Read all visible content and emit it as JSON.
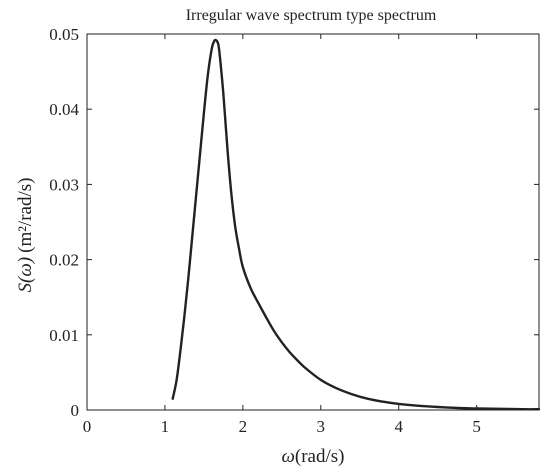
{
  "chart_data": {
    "type": "line",
    "title": "Irregular wave spectrum type spectrum",
    "xlabel_symbol": "ω",
    "xlabel_unit": "(rad/s)",
    "ylabel_symbol": "S(ω)",
    "ylabel_unit": "(m²/rad/s)",
    "xlim": [
      0,
      5.8
    ],
    "ylim": [
      0,
      0.05
    ],
    "xticks": [
      0,
      1,
      2,
      3,
      4,
      5
    ],
    "yticks": [
      0,
      0.01,
      0.02,
      0.03,
      0.04,
      0.05
    ],
    "xtick_labels": [
      "0",
      "1",
      "2",
      "3",
      "4",
      "5"
    ],
    "ytick_labels": [
      "0",
      "0.01",
      "0.02",
      "0.03",
      "0.04",
      "0.05"
    ],
    "grid": false,
    "series": [
      {
        "x": [
          1.1,
          1.15,
          1.2,
          1.25,
          1.3,
          1.35,
          1.4,
          1.45,
          1.5,
          1.55,
          1.6,
          1.63,
          1.65,
          1.68,
          1.7,
          1.75,
          1.8,
          1.85,
          1.9,
          1.95,
          2.0,
          2.1,
          2.2,
          2.3,
          2.4,
          2.5,
          2.6,
          2.7,
          2.8,
          3.0,
          3.2,
          3.4,
          3.6,
          3.8,
          4.0,
          4.2,
          4.5,
          4.8,
          5.0,
          5.3,
          5.6,
          5.8
        ],
        "y": [
          0.0015,
          0.004,
          0.008,
          0.0125,
          0.0175,
          0.023,
          0.0285,
          0.034,
          0.0395,
          0.0445,
          0.048,
          0.049,
          0.0492,
          0.0488,
          0.0475,
          0.042,
          0.035,
          0.029,
          0.0245,
          0.0215,
          0.019,
          0.0162,
          0.0142,
          0.0123,
          0.0105,
          0.009,
          0.0077,
          0.0066,
          0.0056,
          0.004,
          0.0029,
          0.0021,
          0.0015,
          0.0011,
          0.0008,
          0.0006,
          0.0004,
          0.00025,
          0.0002,
          0.00015,
          0.0001,
          0.0001
        ]
      }
    ]
  }
}
